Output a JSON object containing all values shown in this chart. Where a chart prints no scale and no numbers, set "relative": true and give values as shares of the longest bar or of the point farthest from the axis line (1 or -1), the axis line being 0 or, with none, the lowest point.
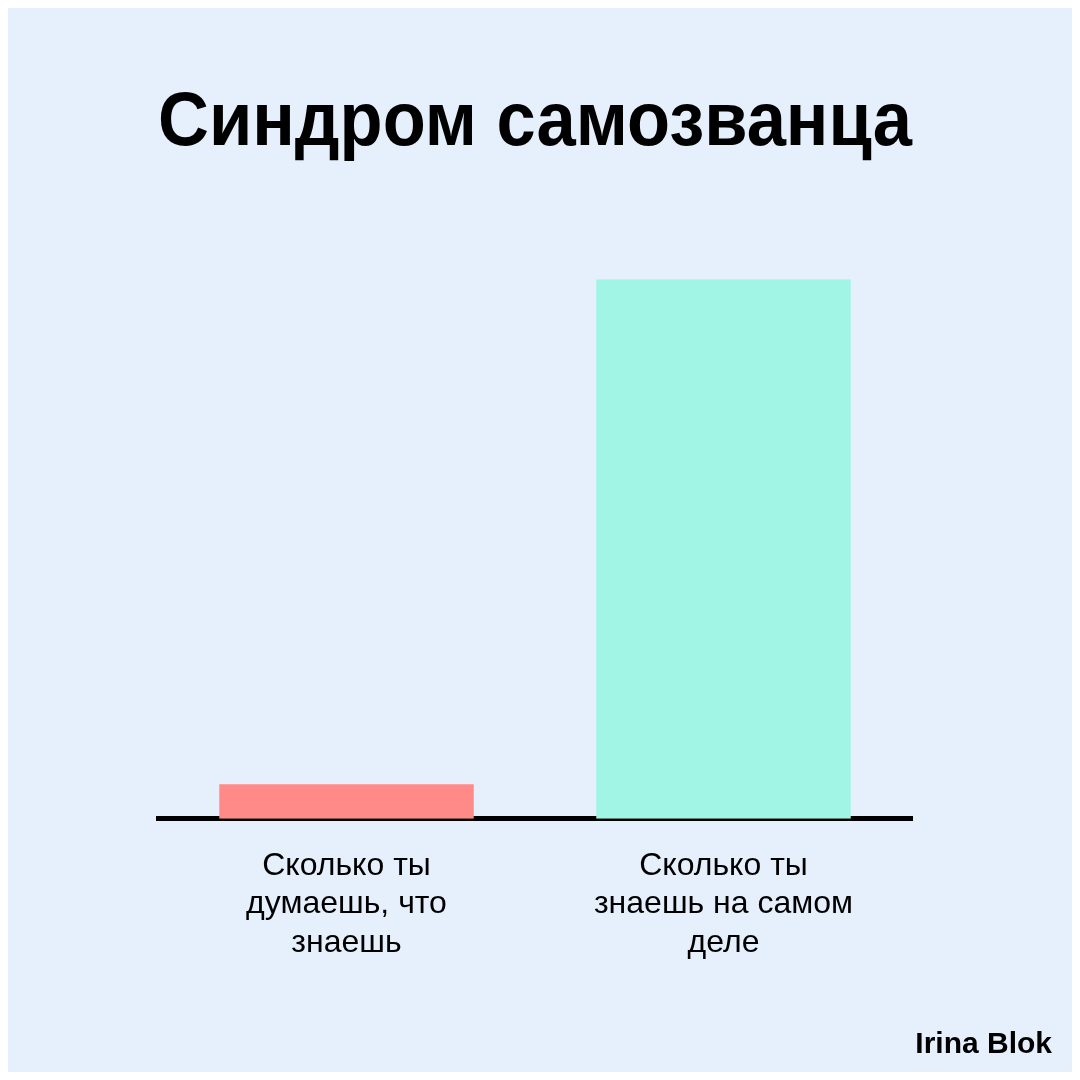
{
  "chart_data": {
    "type": "bar",
    "title": "Синдром самозванца",
    "categories": [
      "Сколько ты думаешь, что знаешь",
      "Сколько ты знаешь на самом деле"
    ],
    "values": [
      0.064,
      1
    ],
    "colors": [
      "#ff8a87",
      "#a0f5e4"
    ],
    "relative": true,
    "annotations": [
      "Irina Blok"
    ]
  }
}
